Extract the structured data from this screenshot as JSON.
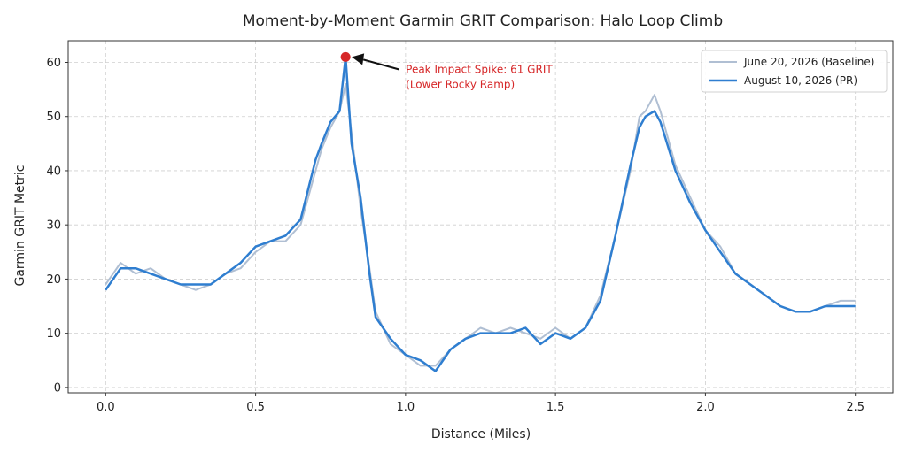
{
  "chart_data": {
    "type": "line",
    "title": "Moment-by-Moment Garmin GRIT Comparison: Halo Loop Climb",
    "xlabel": "Distance (Miles)",
    "ylabel": "Garmin GRIT Metric",
    "xlim": [
      -0.125,
      2.625
    ],
    "ylim": [
      -1,
      64
    ],
    "xticks": [
      0.0,
      0.5,
      1.0,
      1.5,
      2.0,
      2.5
    ],
    "xtick_labels": [
      "0.0",
      "0.5",
      "1.0",
      "1.5",
      "2.0",
      "2.5"
    ],
    "yticks": [
      0,
      10,
      20,
      30,
      40,
      50,
      60
    ],
    "ytick_labels": [
      "0",
      "10",
      "20",
      "30",
      "40",
      "50",
      "60"
    ],
    "grid": true,
    "legend_position": "top-right",
    "series": [
      {
        "name": "June 20, 2026 (Baseline)",
        "color": "#b0bfd3",
        "x": [
          0.0,
          0.05,
          0.1,
          0.15,
          0.2,
          0.25,
          0.3,
          0.35,
          0.4,
          0.45,
          0.5,
          0.55,
          0.6,
          0.65,
          0.7,
          0.72,
          0.75,
          0.78,
          0.8,
          0.82,
          0.85,
          0.88,
          0.9,
          0.95,
          1.0,
          1.05,
          1.1,
          1.15,
          1.2,
          1.25,
          1.3,
          1.35,
          1.4,
          1.45,
          1.5,
          1.55,
          1.6,
          1.65,
          1.7,
          1.75,
          1.78,
          1.8,
          1.83,
          1.85,
          1.9,
          1.95,
          2.0,
          2.05,
          2.1,
          2.15,
          2.2,
          2.25,
          2.3,
          2.35,
          2.4,
          2.45,
          2.5
        ],
        "values": [
          19,
          23,
          21,
          22,
          20,
          19,
          18,
          19,
          21,
          22,
          25,
          27,
          27,
          30,
          40,
          44,
          48,
          51,
          56,
          47,
          33,
          22,
          14,
          8,
          6,
          4,
          4,
          7,
          9,
          11,
          10,
          11,
          10,
          9,
          11,
          9,
          11,
          17,
          28,
          40,
          50,
          51,
          54,
          51,
          41,
          35,
          29,
          26,
          21,
          19,
          17,
          15,
          14,
          14,
          15,
          16,
          16
        ]
      },
      {
        "name": "August 10, 2026 (PR)",
        "color": "#2f7ed0",
        "x": [
          0.0,
          0.05,
          0.1,
          0.15,
          0.2,
          0.25,
          0.3,
          0.35,
          0.4,
          0.45,
          0.5,
          0.55,
          0.6,
          0.65,
          0.7,
          0.72,
          0.75,
          0.78,
          0.8,
          0.82,
          0.85,
          0.88,
          0.9,
          0.95,
          1.0,
          1.05,
          1.1,
          1.15,
          1.2,
          1.25,
          1.3,
          1.35,
          1.4,
          1.45,
          1.5,
          1.55,
          1.6,
          1.65,
          1.7,
          1.75,
          1.78,
          1.8,
          1.83,
          1.85,
          1.9,
          1.95,
          2.0,
          2.05,
          2.1,
          2.15,
          2.2,
          2.25,
          2.3,
          2.35,
          2.4,
          2.45,
          2.5
        ],
        "values": [
          18,
          22,
          22,
          21,
          20,
          19,
          19,
          19,
          21,
          23,
          26,
          27,
          28,
          31,
          42,
          45,
          49,
          51,
          61,
          45,
          35,
          21,
          13,
          9,
          6,
          5,
          3,
          7,
          9,
          10,
          10,
          10,
          11,
          8,
          10,
          9,
          11,
          16,
          28,
          41,
          48,
          50,
          51,
          49,
          40,
          34,
          29,
          25,
          21,
          19,
          17,
          15,
          14,
          14,
          15,
          15,
          15
        ]
      }
    ],
    "annotations": [
      {
        "x": 0.8,
        "y": 61,
        "line1": "Peak Impact Spike: 61 GRIT",
        "line2": "(Lower Rocky Ramp)",
        "color": "#d62728"
      }
    ]
  }
}
